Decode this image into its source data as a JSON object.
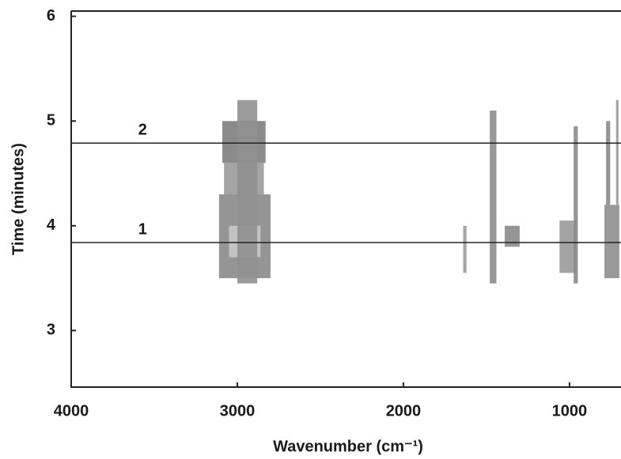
{
  "chart_data": {
    "type": "band-map",
    "x_label": "Wavenumber (cm⁻¹)",
    "y_label": "Time (minutes)",
    "xlim": [
      4000,
      690
    ],
    "ylim": [
      2.46,
      6.05
    ],
    "xticks": [
      4000,
      3000,
      2000,
      1000
    ],
    "yticks": [
      3,
      4,
      5,
      6
    ],
    "bands": [
      {
        "x": [
          3110,
          2800
        ],
        "y": [
          3.5,
          4.3
        ],
        "color": "#8a8a8a"
      },
      {
        "x": [
          3050,
          2860
        ],
        "y": [
          3.7,
          4.0
        ],
        "color": "#c8c8c8"
      },
      {
        "x": [
          3080,
          2840
        ],
        "y": [
          4.3,
          4.6
        ],
        "color": "#9a9a9a"
      },
      {
        "x": [
          3090,
          2830
        ],
        "y": [
          4.6,
          5.0
        ],
        "color": "#7e7e7e"
      },
      {
        "x": [
          3000,
          2880
        ],
        "y": [
          3.45,
          5.2
        ],
        "color": "#909090"
      },
      {
        "x": [
          1640,
          1620
        ],
        "y": [
          3.55,
          4.0
        ],
        "color": "#9a9a9a"
      },
      {
        "x": [
          1480,
          1440
        ],
        "y": [
          3.45,
          5.1
        ],
        "color": "#8e8e8e"
      },
      {
        "x": [
          1390,
          1300
        ],
        "y": [
          3.8,
          4.0
        ],
        "color": "#8a8a8a"
      },
      {
        "x": [
          1060,
          960
        ],
        "y": [
          3.55,
          4.05
        ],
        "color": "#9a9a9a"
      },
      {
        "x": [
          975,
          950
        ],
        "y": [
          3.45,
          4.95
        ],
        "color": "#8a8a8a"
      },
      {
        "x": [
          790,
          700
        ],
        "y": [
          3.5,
          4.2
        ],
        "color": "#8e8e8e"
      },
      {
        "x": [
          780,
          755
        ],
        "y": [
          4.2,
          5.0
        ],
        "color": "#8a8a8a"
      },
      {
        "x": [
          720,
          705
        ],
        "y": [
          4.2,
          5.2
        ],
        "color": "#9a9a9a"
      }
    ],
    "lines": [
      {
        "label": "1",
        "value": 3.84,
        "x": 3570
      },
      {
        "label": "2",
        "value": 4.79,
        "x": 3570
      }
    ]
  }
}
